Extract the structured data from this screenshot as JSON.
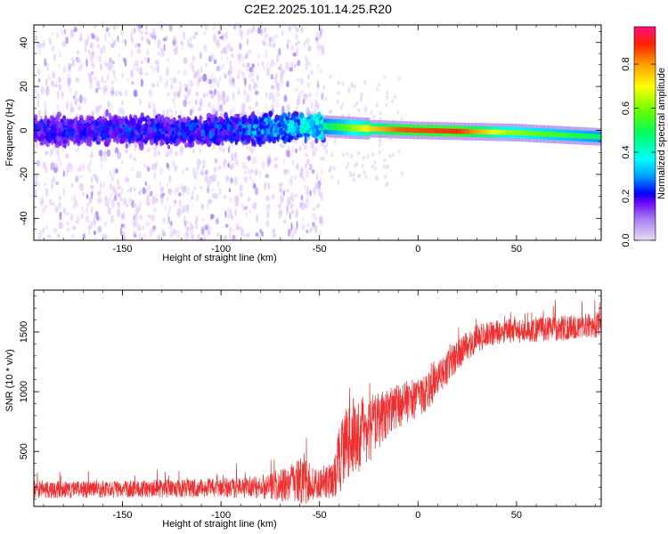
{
  "title": "C2E2.2025.101.14.25.R20",
  "chart_data": [
    {
      "type": "heatmap",
      "name": "spectrogram",
      "xlabel": "Height of straight line (km)",
      "ylabel": "Frequency (Hz)",
      "xlim": [
        -195,
        93
      ],
      "ylim": [
        -50,
        48
      ],
      "xticks": [
        -150,
        -100,
        -50,
        0,
        50
      ],
      "xtick_labels": [
        "-150",
        "-100",
        "-50",
        "0",
        "50"
      ],
      "yticks": [
        -40,
        -20,
        0,
        20,
        40
      ],
      "ytick_labels": [
        "-40",
        "-20",
        "0",
        "20",
        "40"
      ],
      "colorbar": {
        "label": "Normalized spectral amplitude",
        "range": [
          0,
          0.97
        ],
        "ticks": [
          0.0,
          0.2,
          0.4,
          0.6,
          0.8
        ],
        "tick_labels": [
          "0.0",
          "0.2",
          "0.4",
          "0.6",
          "0.8"
        ]
      },
      "description_points": {
        "center_frequency_hz": [
          [
            -195,
            0
          ],
          [
            -100,
            0
          ],
          [
            -50,
            2
          ],
          [
            -30,
            1
          ],
          [
            0,
            0
          ],
          [
            50,
            -1
          ],
          [
            93,
            -3
          ]
        ],
        "amplitude": [
          [
            -195,
            0.22
          ],
          [
            -100,
            0.25
          ],
          [
            -65,
            0.35
          ],
          [
            -50,
            0.45
          ],
          [
            -40,
            0.55
          ],
          [
            -25,
            0.75
          ],
          [
            -10,
            0.88
          ],
          [
            20,
            0.92
          ],
          [
            45,
            0.65
          ],
          [
            93,
            0.5
          ]
        ]
      },
      "colors": {
        "scatter_light": "#e3ccf7",
        "scatter_mid": "#a07ef0",
        "core_dark": "#3d00e0",
        "core_mid": "#1a3cff"
      }
    },
    {
      "type": "line",
      "name": "snr",
      "xlabel": "Height of straight line (km)",
      "ylabel": "SNR (10 * v/v)",
      "xlim": [
        -195,
        93
      ],
      "ylim": [
        40,
        1850
      ],
      "xticks": [
        -150,
        -100,
        -50,
        0,
        50
      ],
      "xtick_labels": [
        "-150",
        "-100",
        "-50",
        "0",
        "50"
      ],
      "yticks": [
        500,
        1000,
        1500
      ],
      "ytick_labels": [
        "500",
        "1000",
        "1500"
      ],
      "line_color": "#ee3030",
      "series": [
        {
          "name": "SNR",
          "x": [
            -195,
            -170,
            -150,
            -130,
            -110,
            -90,
            -75,
            -65,
            -58,
            -52,
            -48,
            -44,
            -40,
            -36,
            -32,
            -28,
            -24,
            -20,
            -15,
            -10,
            -5,
            0,
            5,
            10,
            15,
            20,
            25,
            30,
            35,
            40,
            50,
            60,
            70,
            80,
            93
          ],
          "y": [
            180,
            180,
            185,
            190,
            195,
            200,
            210,
            230,
            250,
            230,
            230,
            250,
            420,
            600,
            620,
            640,
            700,
            760,
            820,
            880,
            920,
            950,
            1000,
            1100,
            1200,
            1300,
            1380,
            1450,
            1480,
            1500,
            1510,
            1520,
            1530,
            1540,
            1560
          ],
          "noise": [
            90,
            90,
            90,
            95,
            100,
            110,
            140,
            200,
            260,
            150,
            160,
            200,
            350,
            400,
            420,
            380,
            350,
            300,
            260,
            240,
            220,
            200,
            190,
            180,
            170,
            160,
            150,
            150,
            140,
            130,
            130,
            130,
            130,
            130,
            140
          ]
        }
      ]
    }
  ]
}
